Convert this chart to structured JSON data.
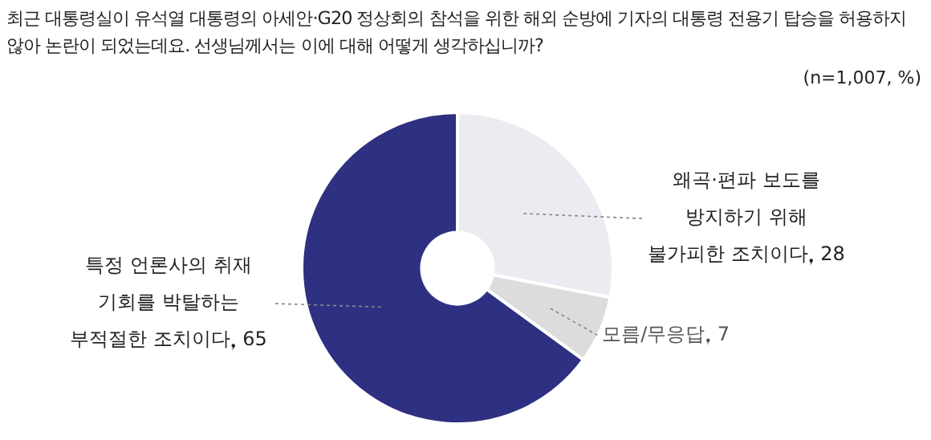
{
  "chart_data": {
    "type": "donut",
    "title": "최근 대통령실이 유석열 대통령의 아세안·G20 정상회의 참석을 위한 해외 순방에 기자의 대통령 전용기 탑승을 허용하지 않아 논란이 되었는데요. 선생님께서는 이에 대해 어떻게 생각하십니까?",
    "subtitle": "(n=1,007, %)",
    "categories": [
      "왜곡·편파 보도를 방지하기 위해 불가피한 조치이다",
      "모름/무응답",
      "특정 언론사의 취재 기회를 박탈하는 부적절한 조치이다"
    ],
    "values": [
      28,
      7,
      65
    ],
    "colors": [
      "#ebebf2",
      "#dcdcdc",
      "#2e3081"
    ],
    "data_labels": true,
    "legend": false
  }
}
